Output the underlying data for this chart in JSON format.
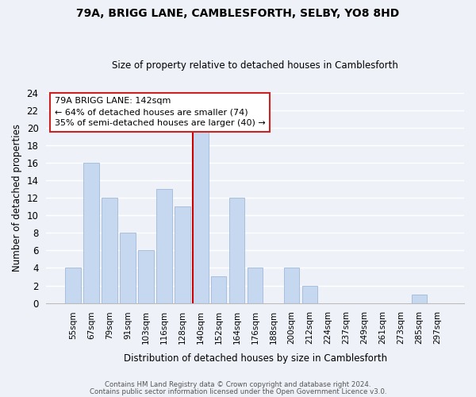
{
  "title": "79A, BRIGG LANE, CAMBLESFORTH, SELBY, YO8 8HD",
  "subtitle": "Size of property relative to detached houses in Camblesforth",
  "xlabel": "Distribution of detached houses by size in Camblesforth",
  "ylabel": "Number of detached properties",
  "bin_labels": [
    "55sqm",
    "67sqm",
    "79sqm",
    "91sqm",
    "103sqm",
    "116sqm",
    "128sqm",
    "140sqm",
    "152sqm",
    "164sqm",
    "176sqm",
    "188sqm",
    "200sqm",
    "212sqm",
    "224sqm",
    "237sqm",
    "249sqm",
    "261sqm",
    "273sqm",
    "285sqm",
    "297sqm"
  ],
  "bar_heights": [
    4,
    16,
    12,
    8,
    6,
    13,
    11,
    20,
    3,
    12,
    4,
    0,
    4,
    2,
    0,
    0,
    0,
    0,
    0,
    1,
    0
  ],
  "bar_color": "#c5d8ef",
  "bar_edge_color": "#a0b8d8",
  "property_line_bin": 7,
  "annotation_text1": "79A BRIGG LANE: 142sqm",
  "annotation_text2": "← 64% of detached houses are smaller (74)",
  "annotation_text3": "35% of semi-detached houses are larger (40) →",
  "vline_color": "#cc0000",
  "ylim": [
    0,
    24
  ],
  "yticks": [
    0,
    2,
    4,
    6,
    8,
    10,
    12,
    14,
    16,
    18,
    20,
    22,
    24
  ],
  "footer1": "Contains HM Land Registry data © Crown copyright and database right 2024.",
  "footer2": "Contains public sector information licensed under the Open Government Licence v3.0.",
  "bg_color": "#eef2f8",
  "plot_bg_color": "#eef2f8",
  "grid_color": "#ffffff",
  "annotation_box_color": "#ffffff",
  "annotation_box_edge": "#cc2222"
}
